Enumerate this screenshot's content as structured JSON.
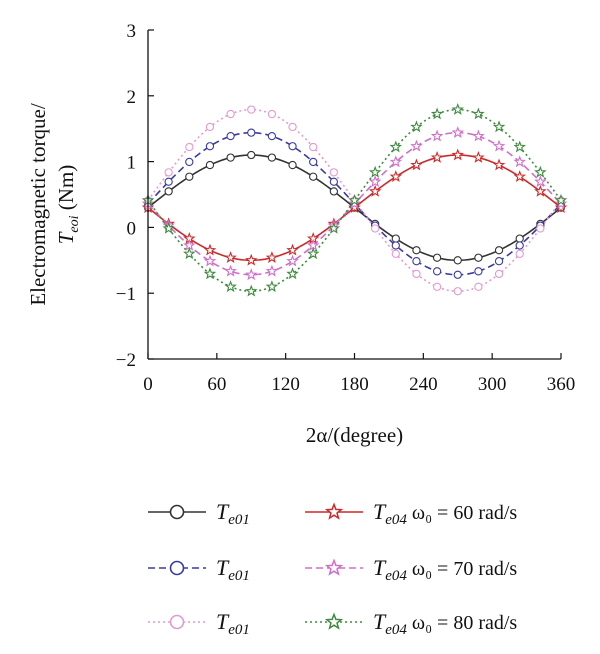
{
  "chart_data": {
    "type": "line",
    "xlabel": "2α/(degree)",
    "ylabel_line1": "Electromagnetic torque/",
    "ylabel_var": "T",
    "ylabel_sub": "eoi",
    "ylabel_unit": "(Nm)",
    "xlim": [
      0,
      360
    ],
    "ylim": [
      -2,
      3
    ],
    "xticks": [
      0,
      60,
      120,
      180,
      240,
      300,
      360
    ],
    "yticks": [
      -2,
      -1,
      0,
      1,
      2,
      3
    ],
    "ytick_labels": [
      "−2",
      "−1",
      "0",
      "1",
      "2",
      "3"
    ],
    "x": [
      0,
      18,
      36,
      54,
      72,
      90,
      108,
      126,
      144,
      162,
      180,
      198,
      216,
      234,
      252,
      270,
      288,
      306,
      324,
      342,
      360
    ],
    "series": [
      {
        "var": "T",
        "sub": "e01",
        "suffix": "",
        "color": "#333333",
        "dash": "",
        "marker": "circle",
        "mean": 0.3,
        "amp": 0.8
      },
      {
        "var": "T",
        "sub": "e01",
        "suffix": "",
        "color": "#3a3aa0",
        "dash": "7,4",
        "marker": "circle",
        "mean": 0.36,
        "amp": 1.08
      },
      {
        "var": "T",
        "sub": "e01",
        "suffix": "",
        "color": "#e39ad2",
        "dash": "2,3",
        "marker": "circle",
        "mean": 0.41,
        "amp": 1.38
      },
      {
        "var": "T",
        "sub": "e04",
        "suffix": " ω₀ = 60 rad/s",
        "color": "#cc2a2a",
        "dash": "",
        "marker": "star",
        "mean": 0.3,
        "amp": -0.8
      },
      {
        "var": "T",
        "sub": "e04",
        "suffix": " ω₀ = 70 rad/s",
        "color": "#cf6fc8",
        "dash": "7,4",
        "marker": "star",
        "mean": 0.36,
        "amp": -1.08
      },
      {
        "var": "T",
        "sub": "e04",
        "suffix": " ω₀ = 80 rad/s",
        "color": "#3e8a3e",
        "dash": "2,3",
        "marker": "star",
        "mean": 0.41,
        "amp": -1.38
      }
    ]
  }
}
